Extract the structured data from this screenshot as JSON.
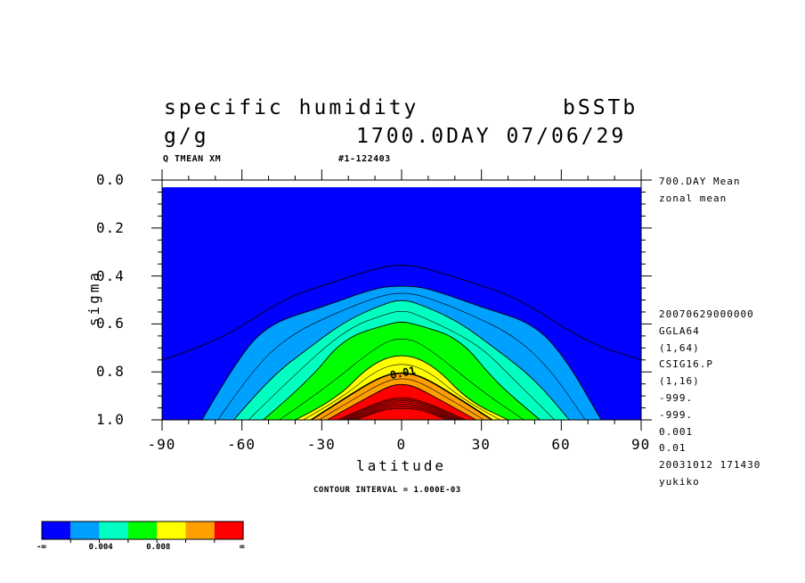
{
  "header": {
    "title": "specific humidity",
    "run": "bSSTb",
    "units": "g/g",
    "time": "1700.0DAY 07/06/29",
    "variable": "Q TMEAN XM",
    "case_id": "#1-122403"
  },
  "chart_data": {
    "type": "contour",
    "xlabel": "latitude",
    "ylabel": "sigma",
    "xlim": [
      -90,
      90
    ],
    "ylim": [
      1.0,
      0.0
    ],
    "xticks": [
      "-90",
      "-60",
      "-30",
      "0",
      "30",
      "60",
      "90"
    ],
    "yticks": [
      "0.0",
      "0.2",
      "0.4",
      "0.6",
      "0.8",
      "1.0"
    ],
    "contour_interval": "CONTOUR INTERVAL = 1.000E-03",
    "contour_label": "0.01",
    "fill_colors": [
      "#0000ff",
      "#00a0ff",
      "#00ffc0",
      "#00ff00",
      "#ffff00",
      "#ffa000",
      "#ff0000"
    ],
    "colorbar_labels": [
      "-∞",
      "0.004",
      "0.008",
      "∞"
    ],
    "field_levels_sigma_top": [
      {
        "level": 0.001,
        "lat": [
          -90,
          -70,
          -45,
          -30,
          -10,
          0,
          10,
          30,
          45,
          70,
          90
        ],
        "sigma": [
          0.75,
          0.68,
          0.5,
          0.44,
          0.37,
          0.35,
          0.37,
          0.44,
          0.5,
          0.68,
          0.75
        ]
      },
      {
        "level": 0.002,
        "lat": [
          -75,
          -62,
          -50,
          -30,
          -10,
          0,
          10,
          30,
          50,
          62,
          75
        ],
        "sigma": [
          1.0,
          0.75,
          0.6,
          0.53,
          0.45,
          0.44,
          0.45,
          0.53,
          0.6,
          0.75,
          1.0
        ]
      },
      {
        "level": 0.004,
        "lat": [
          -63,
          -50,
          -35,
          -20,
          -5,
          0,
          5,
          20,
          35,
          50,
          63
        ],
        "sigma": [
          1.0,
          0.83,
          0.7,
          0.58,
          0.51,
          0.5,
          0.51,
          0.58,
          0.7,
          0.83,
          1.0
        ]
      },
      {
        "level": 0.006,
        "lat": [
          -52,
          -35,
          -22,
          -5,
          0,
          5,
          22,
          35,
          52
        ],
        "sigma": [
          1.0,
          0.84,
          0.66,
          0.6,
          0.59,
          0.6,
          0.66,
          0.84,
          1.0
        ]
      },
      {
        "level": 0.008,
        "lat": [
          -40,
          -25,
          -12,
          0,
          12,
          25,
          40
        ],
        "sigma": [
          1.0,
          0.92,
          0.77,
          0.72,
          0.77,
          0.92,
          1.0
        ]
      },
      {
        "level": 0.01,
        "lat": [
          -34,
          -20,
          -8,
          0,
          8,
          20,
          34
        ],
        "sigma": [
          1.0,
          0.9,
          0.82,
          0.8,
          0.82,
          0.9,
          1.0
        ]
      },
      {
        "level": 0.012,
        "lat": [
          -28,
          -15,
          -5,
          0,
          5,
          15,
          28
        ],
        "sigma": [
          1.0,
          0.92,
          0.86,
          0.85,
          0.86,
          0.92,
          1.0
        ]
      }
    ]
  },
  "side_info": {
    "mean_label": "700.DAY Mean",
    "mean_type": "zonal mean",
    "lines": [
      "20070629000000",
      "GGLA64",
      "(1,64)",
      "CSIG16.P",
      "(1,16)",
      "-999.",
      "-999.",
      "0.001",
      "0.01",
      "20031012 171430",
      "yukiko"
    ]
  }
}
